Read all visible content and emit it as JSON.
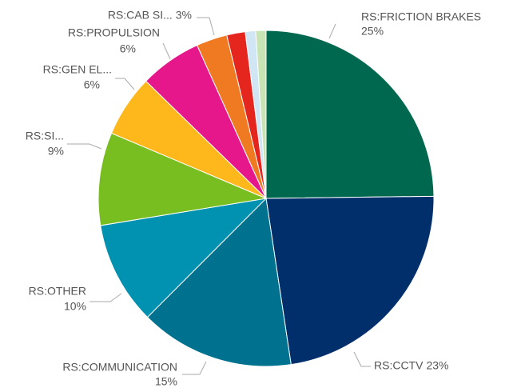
{
  "chart_data": {
    "type": "pie",
    "categories": [
      "RS:FRICTION BRAKES",
      "RS:CCTV",
      "RS:COMMUNICATION",
      "RS:OTHER",
      "RS:SI...",
      "RS:GEN EL...",
      "RS:PROPULSION",
      "RS:CAB SI...",
      null,
      null,
      null
    ],
    "values": [
      25,
      23,
      15,
      10,
      9,
      6,
      6,
      3,
      1.8,
      1,
      1
    ],
    "value_labels": [
      "25%",
      "23%",
      "15%",
      "10%",
      "9%",
      "6%",
      "6%",
      "3%",
      null,
      null,
      null
    ],
    "colors": [
      "#00684f",
      "#002f6c",
      "#00728f",
      "#0092b0",
      "#78be20",
      "#ffb81c",
      "#e5178a",
      "#f07a22",
      "#e4261f",
      "#d0e6f5",
      "#c9e4b4"
    ]
  }
}
